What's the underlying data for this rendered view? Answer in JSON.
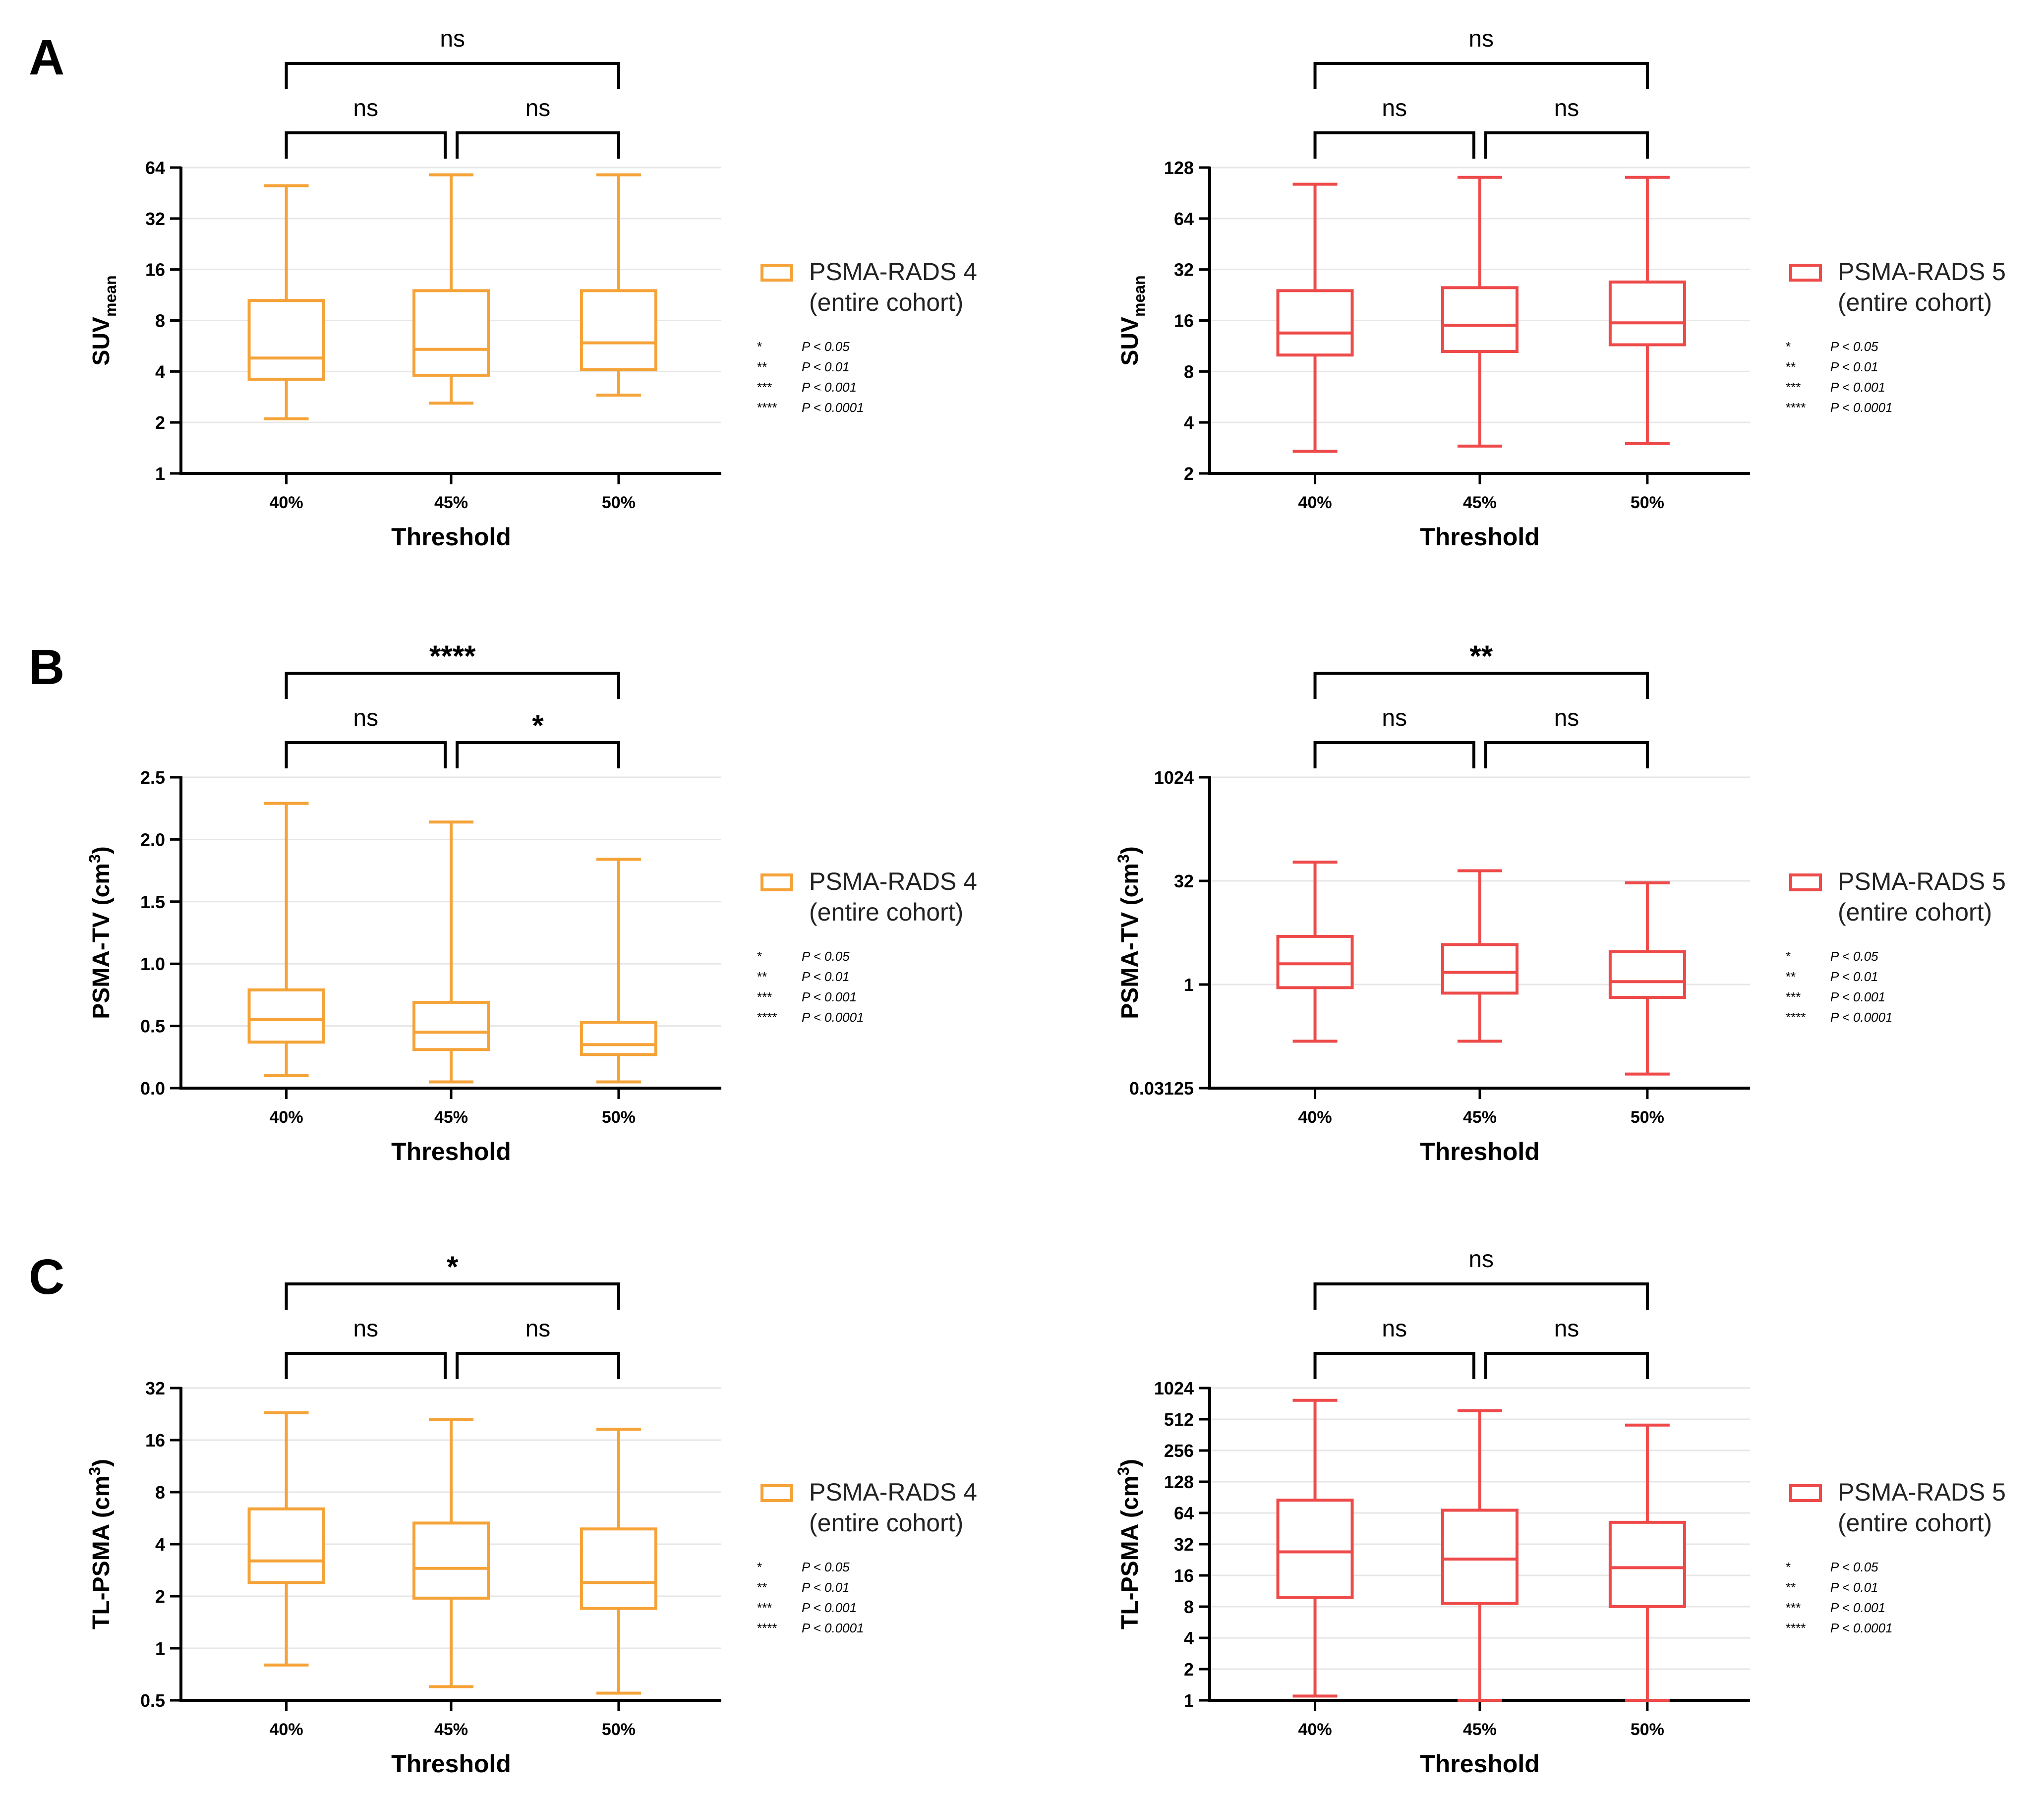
{
  "panel_letters": [
    "A",
    "B",
    "C"
  ],
  "colors": {
    "orange": "#F5A338",
    "red": "#EE4A4A",
    "grid": "#e6e6e6"
  },
  "chart_data": [
    {
      "type": "boxplot",
      "panel": "A",
      "row": 0,
      "col": 0,
      "scale": "log2",
      "xlabel": "Threshold",
      "ylabel": "SUV",
      "ylabel_sub": "mean",
      "ylim": [
        1,
        64
      ],
      "yticks": [
        1,
        2,
        4,
        8,
        16,
        32,
        64
      ],
      "ytick_labels": [
        "1",
        "2",
        "4",
        "8",
        "16",
        "32",
        "64"
      ],
      "categories": [
        "40%",
        "45%",
        "50%"
      ],
      "color": "#F5A338",
      "legend": [
        "PSMA-RADS 4",
        "(entire cohort)"
      ],
      "boxes": [
        {
          "min": 2.1,
          "q1": 3.6,
          "median": 4.8,
          "q3": 10.5,
          "max": 50
        },
        {
          "min": 2.6,
          "q1": 3.8,
          "median": 5.4,
          "q3": 12.0,
          "max": 58
        },
        {
          "min": 2.9,
          "q1": 4.1,
          "median": 5.9,
          "q3": 12.0,
          "max": 58
        }
      ],
      "significance": [
        {
          "from": 0,
          "to": 1,
          "label": "ns",
          "level": 1
        },
        {
          "from": 1,
          "to": 2,
          "label": "ns",
          "level": 1
        },
        {
          "from": 0,
          "to": 2,
          "label": "ns",
          "level": 2
        }
      ]
    },
    {
      "type": "boxplot",
      "panel": "A",
      "row": 0,
      "col": 1,
      "scale": "log2",
      "xlabel": "Threshold",
      "ylabel": "SUV",
      "ylabel_sub": "mean",
      "ylim": [
        2,
        128
      ],
      "yticks": [
        2,
        4,
        8,
        16,
        32,
        64,
        128
      ],
      "ytick_labels": [
        "2",
        "4",
        "8",
        "16",
        "32",
        "64",
        "128"
      ],
      "categories": [
        "40%",
        "45%",
        "50%"
      ],
      "color": "#EE4A4A",
      "legend": [
        "PSMA-RADS 5",
        "(entire cohort)"
      ],
      "boxes": [
        {
          "min": 2.7,
          "q1": 10.0,
          "median": 13.5,
          "q3": 24.0,
          "max": 102
        },
        {
          "min": 2.9,
          "q1": 10.5,
          "median": 15.0,
          "q3": 25.0,
          "max": 112
        },
        {
          "min": 3.0,
          "q1": 11.5,
          "median": 15.5,
          "q3": 27.0,
          "max": 112
        }
      ],
      "significance": [
        {
          "from": 0,
          "to": 1,
          "label": "ns",
          "level": 1
        },
        {
          "from": 1,
          "to": 2,
          "label": "ns",
          "level": 1
        },
        {
          "from": 0,
          "to": 2,
          "label": "ns",
          "level": 2
        }
      ]
    },
    {
      "type": "boxplot",
      "panel": "B",
      "row": 1,
      "col": 0,
      "scale": "linear",
      "xlabel": "Threshold",
      "ylabel": "PSMA-TV (cm",
      "ylabel_sup": "3",
      "ylabel_end": ")",
      "ylim": [
        0,
        2.5
      ],
      "yticks": [
        0,
        0.5,
        1.0,
        1.5,
        2.0,
        2.5
      ],
      "ytick_labels": [
        "0.0",
        "0.5",
        "1.0",
        "1.5",
        "2.0",
        "2.5"
      ],
      "categories": [
        "40%",
        "45%",
        "50%"
      ],
      "color": "#F5A338",
      "legend": [
        "PSMA-RADS 4",
        "(entire cohort)"
      ],
      "boxes": [
        {
          "min": 0.1,
          "q1": 0.37,
          "median": 0.55,
          "q3": 0.79,
          "max": 2.29
        },
        {
          "min": 0.05,
          "q1": 0.31,
          "median": 0.45,
          "q3": 0.69,
          "max": 2.14
        },
        {
          "min": 0.05,
          "q1": 0.27,
          "median": 0.35,
          "q3": 0.53,
          "max": 1.84
        }
      ],
      "significance": [
        {
          "from": 0,
          "to": 1,
          "label": "ns",
          "level": 1
        },
        {
          "from": 1,
          "to": 2,
          "label": "*",
          "level": 1
        },
        {
          "from": 0,
          "to": 2,
          "label": "****",
          "level": 2
        }
      ]
    },
    {
      "type": "boxplot",
      "panel": "B",
      "row": 1,
      "col": 1,
      "scale": "log2",
      "xlabel": "Threshold",
      "ylabel": "PSMA-TV (cm",
      "ylabel_sup": "3",
      "ylabel_end": ")",
      "ylim": [
        0.03125,
        1024
      ],
      "yticks": [
        0.03125,
        1,
        32,
        1024
      ],
      "ytick_labels": [
        "0.03125",
        "1",
        "32",
        "1024"
      ],
      "categories": [
        "40%",
        "45%",
        "50%"
      ],
      "color": "#EE4A4A",
      "legend": [
        "PSMA-RADS 5",
        "(entire cohort)"
      ],
      "boxes": [
        {
          "min": 0.15,
          "q1": 0.9,
          "median": 2.0,
          "q3": 5.0,
          "max": 60
        },
        {
          "min": 0.15,
          "q1": 0.75,
          "median": 1.5,
          "q3": 3.8,
          "max": 45
        },
        {
          "min": 0.05,
          "q1": 0.65,
          "median": 1.1,
          "q3": 3.0,
          "max": 30
        }
      ],
      "significance": [
        {
          "from": 0,
          "to": 1,
          "label": "ns",
          "level": 1
        },
        {
          "from": 1,
          "to": 2,
          "label": "ns",
          "level": 1
        },
        {
          "from": 0,
          "to": 2,
          "label": "**",
          "level": 2
        }
      ]
    },
    {
      "type": "boxplot",
      "panel": "C",
      "row": 2,
      "col": 0,
      "scale": "log2",
      "xlabel": "Threshold",
      "ylabel": "TL-PSMA (cm",
      "ylabel_sup": "3",
      "ylabel_end": ")",
      "ylim": [
        0.5,
        32
      ],
      "yticks": [
        0.5,
        1,
        2,
        4,
        8,
        16,
        32
      ],
      "ytick_labels": [
        "0.5",
        "1",
        "2",
        "4",
        "8",
        "16",
        "32"
      ],
      "categories": [
        "40%",
        "45%",
        "50%"
      ],
      "color": "#F5A338",
      "legend": [
        "PSMA-RADS 4",
        "(entire cohort)"
      ],
      "boxes": [
        {
          "min": 0.8,
          "q1": 2.4,
          "median": 3.2,
          "q3": 6.4,
          "max": 23
        },
        {
          "min": 0.6,
          "q1": 1.95,
          "median": 2.9,
          "q3": 5.3,
          "max": 21
        },
        {
          "min": 0.55,
          "q1": 1.7,
          "median": 2.4,
          "q3": 4.9,
          "max": 18.5
        }
      ],
      "significance": [
        {
          "from": 0,
          "to": 1,
          "label": "ns",
          "level": 1
        },
        {
          "from": 1,
          "to": 2,
          "label": "ns",
          "level": 1
        },
        {
          "from": 0,
          "to": 2,
          "label": "*",
          "level": 2
        }
      ]
    },
    {
      "type": "boxplot",
      "panel": "C",
      "row": 2,
      "col": 1,
      "scale": "log2",
      "xlabel": "Threshold",
      "ylabel": "TL-PSMA (cm",
      "ylabel_sup": "3",
      "ylabel_end": ")",
      "ylim": [
        1,
        1024
      ],
      "yticks": [
        1,
        2,
        4,
        8,
        16,
        32,
        64,
        128,
        256,
        512,
        1024
      ],
      "ytick_labels": [
        "1",
        "2",
        "4",
        "8",
        "16",
        "32",
        "64",
        "128",
        "256",
        "512",
        "1024"
      ],
      "categories": [
        "40%",
        "45%",
        "50%"
      ],
      "color": "#EE4A4A",
      "legend": [
        "PSMA-RADS 5",
        "(entire cohort)"
      ],
      "boxes": [
        {
          "min": 1.1,
          "q1": 9.8,
          "median": 27,
          "q3": 85,
          "max": 780
        },
        {
          "min": 1.0,
          "q1": 8.6,
          "median": 23,
          "q3": 68,
          "max": 620
        },
        {
          "min": 1.0,
          "q1": 8.0,
          "median": 19,
          "q3": 52,
          "max": 450
        }
      ],
      "significance": [
        {
          "from": 0,
          "to": 1,
          "label": "ns",
          "level": 1
        },
        {
          "from": 1,
          "to": 2,
          "label": "ns",
          "level": 1
        },
        {
          "from": 0,
          "to": 2,
          "label": "ns",
          "level": 2
        }
      ]
    }
  ],
  "sig_key": [
    {
      "stars": "*",
      "text": "P < 0.05"
    },
    {
      "stars": "**",
      "text": "P < 0.01"
    },
    {
      "stars": "***",
      "text": "P < 0.001"
    },
    {
      "stars": "****",
      "text": "P < 0.0001"
    }
  ]
}
